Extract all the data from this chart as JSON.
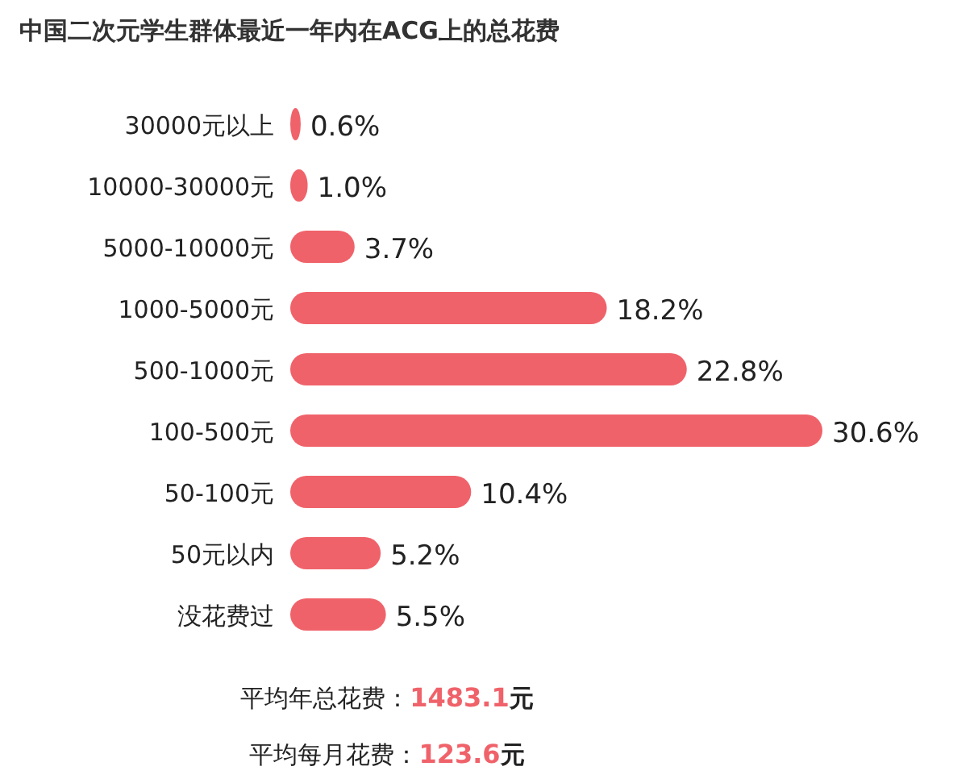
{
  "chart_data": {
    "type": "bar",
    "orientation": "horizontal",
    "title": "中国二次元学生群体最近一年内在ACG上的总花费",
    "categories": [
      "30000元以上",
      "10000-30000元",
      "5000-10000元",
      "1000-5000元",
      "500-1000元",
      "100-500元",
      "50-100元",
      "50元以内",
      "没花费过"
    ],
    "values": [
      0.6,
      1.0,
      3.7,
      18.2,
      22.8,
      30.6,
      10.4,
      5.2,
      5.5
    ],
    "value_labels": [
      "0.6%",
      "1.0%",
      "3.7%",
      "18.2%",
      "22.8%",
      "30.6%",
      "10.4%",
      "5.2%",
      "5.5%"
    ],
    "color": "#f0626a",
    "annotations": [
      "平均年总花费：1483.1元",
      "平均每月花费：123.6元"
    ]
  }
}
